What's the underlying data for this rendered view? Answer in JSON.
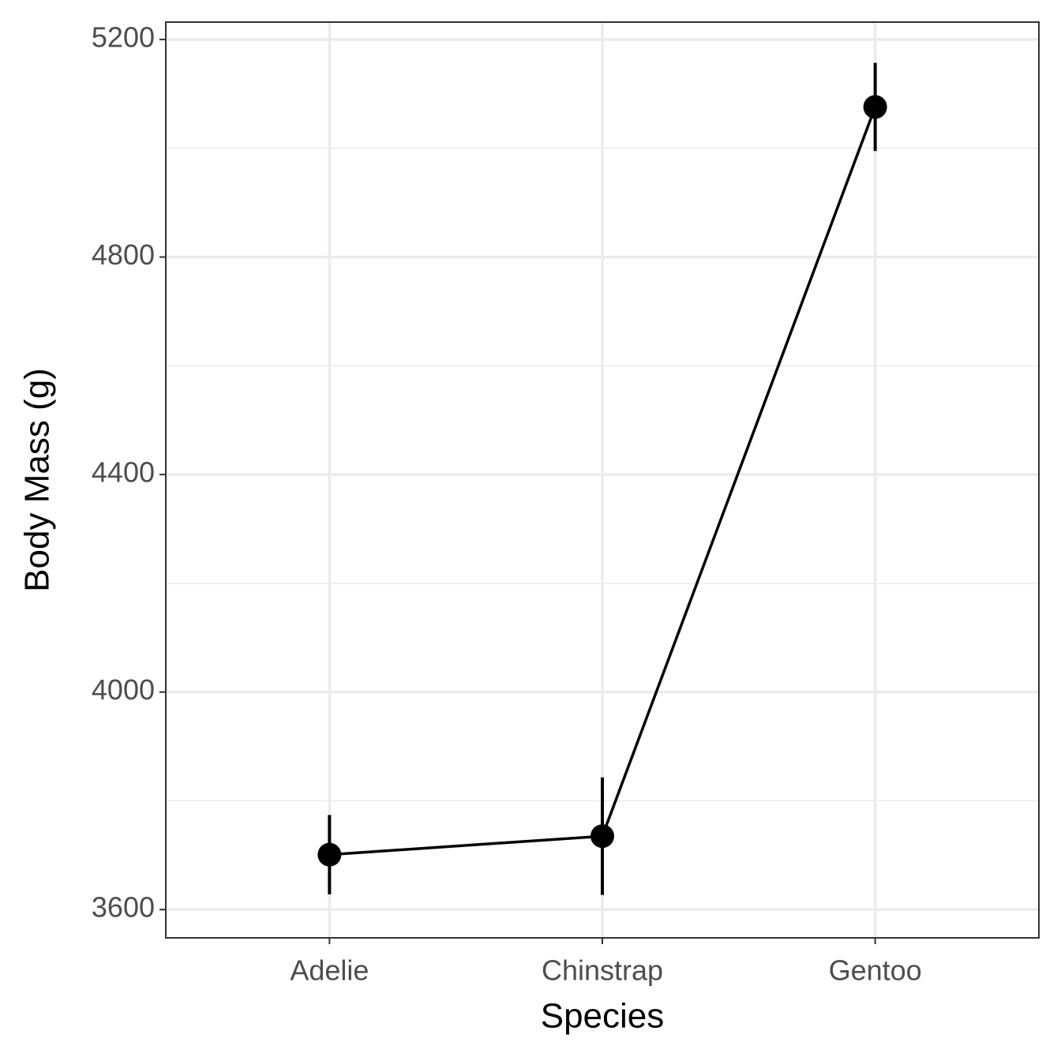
{
  "chart_data": {
    "type": "line",
    "x_label": "Species",
    "y_label": "Body Mass (g)",
    "categories": [
      "Adelie",
      "Chinstrap",
      "Gentoo"
    ],
    "values": [
      3701,
      3735,
      5076
    ],
    "errors": [
      73,
      108,
      81
    ],
    "color": "#000000",
    "ylim": [
      3548,
      5232
    ],
    "yticks": [
      3600,
      4000,
      4400,
      4800,
      5200
    ],
    "minor_yticks": [
      3800,
      4200,
      4600,
      5000
    ],
    "grid": true
  }
}
